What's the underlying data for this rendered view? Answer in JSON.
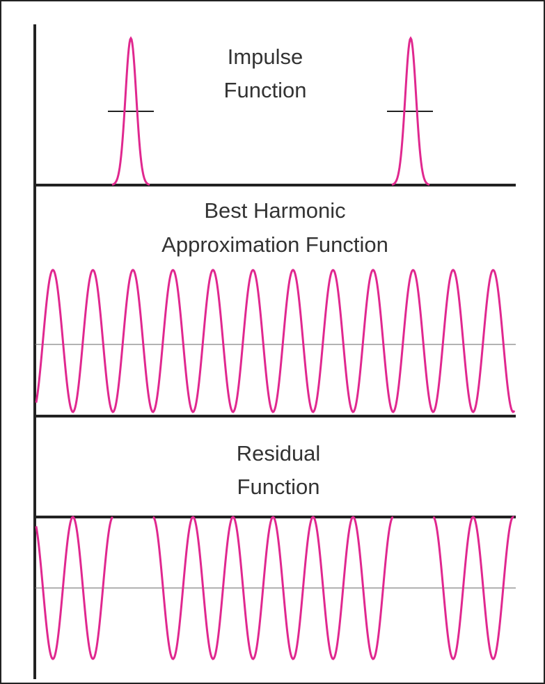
{
  "panels": [
    {
      "label": [
        "Impulse",
        "Function"
      ]
    },
    {
      "label": [
        "Best Harmonic",
        "Approximation Function"
      ]
    },
    {
      "label": [
        "Residual",
        "Function"
      ]
    }
  ]
}
